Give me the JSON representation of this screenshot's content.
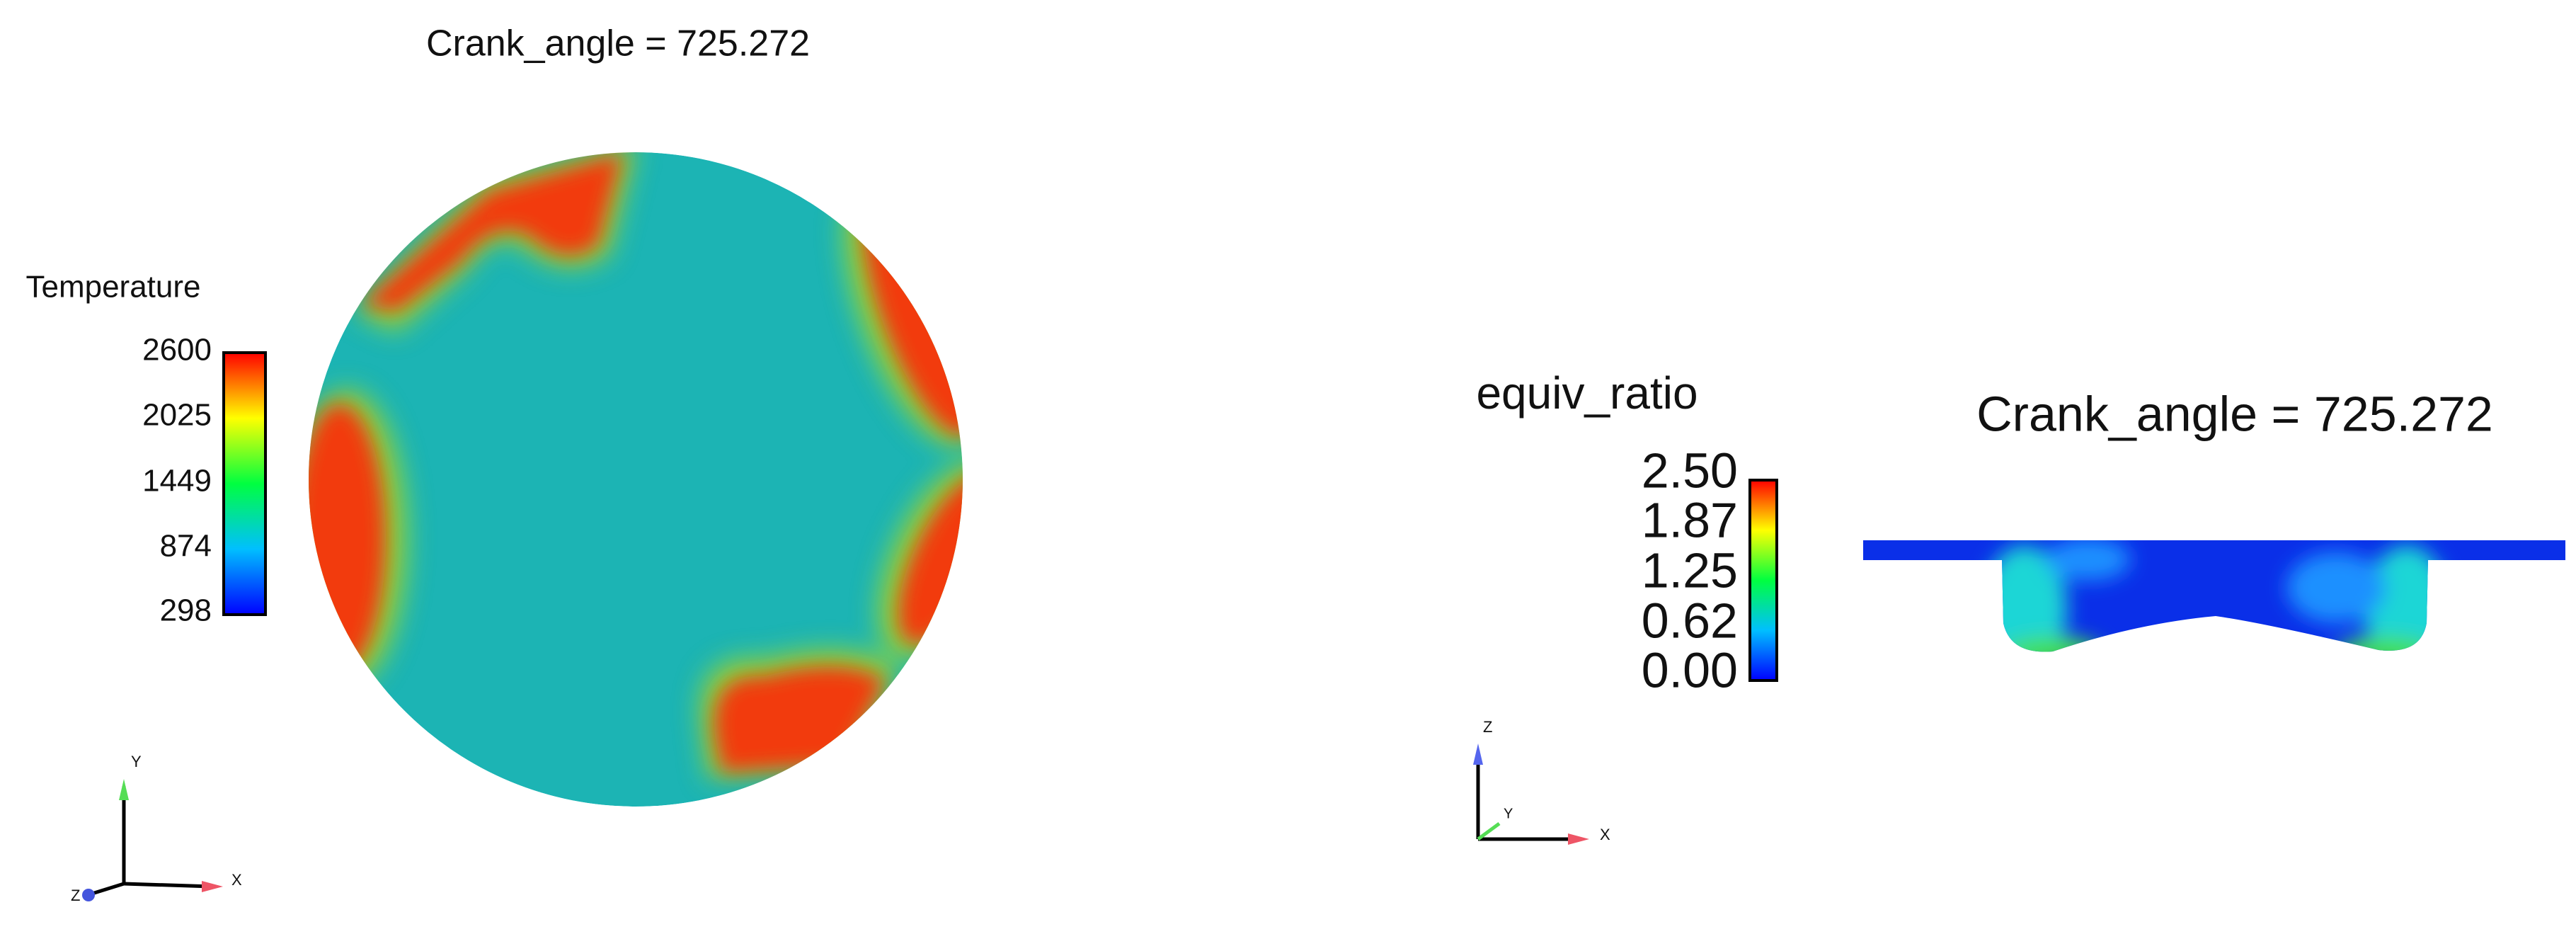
{
  "left_view": {
    "title": "Crank_angle = 725.272",
    "legend_title": "Temperature",
    "legend_ticks": [
      "2600",
      "2025",
      "1449",
      "874",
      "298"
    ],
    "axes": {
      "up": "Y",
      "right": "X",
      "out": "Z"
    }
  },
  "right_view": {
    "title": "Crank_angle = 725.272",
    "legend_title": "equiv_ratio",
    "legend_ticks": [
      "2.50",
      "1.87",
      "1.25",
      "0.62",
      "0.00"
    ],
    "axes": {
      "up": "Z",
      "right": "X",
      "depth": "Y"
    }
  }
}
